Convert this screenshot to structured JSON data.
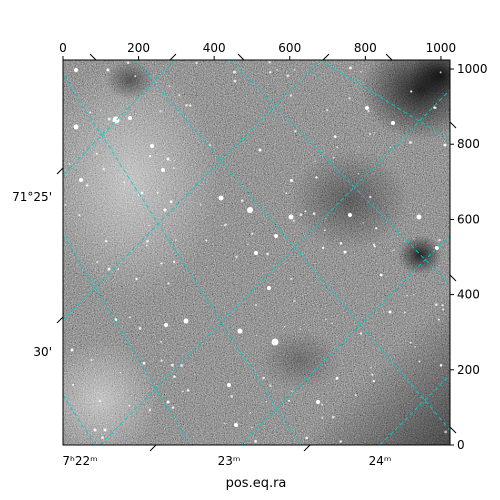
{
  "chart_data": {
    "type": "image",
    "title": "",
    "colormap": "grayscale",
    "grid_color": "#00cccc",
    "grid_style": "dashed",
    "xlabel": "pos.eq.ra",
    "ylabel": "",
    "pixel_axes": {
      "x_range": [
        0,
        1024
      ],
      "y_range": [
        0,
        1024
      ],
      "x_ticks": [
        0,
        200,
        400,
        600,
        800,
        1000
      ],
      "y_ticks": [
        0,
        200,
        400,
        600,
        800,
        1000
      ]
    },
    "ra_ticks": [
      {
        "label": "7ʰ22ᵐ"
      },
      {
        "label": "23ᵐ"
      },
      {
        "label": "24ᵐ"
      }
    ],
    "dec_ticks": [
      {
        "label": "71°25'"
      },
      {
        "label": "30'"
      }
    ]
  }
}
